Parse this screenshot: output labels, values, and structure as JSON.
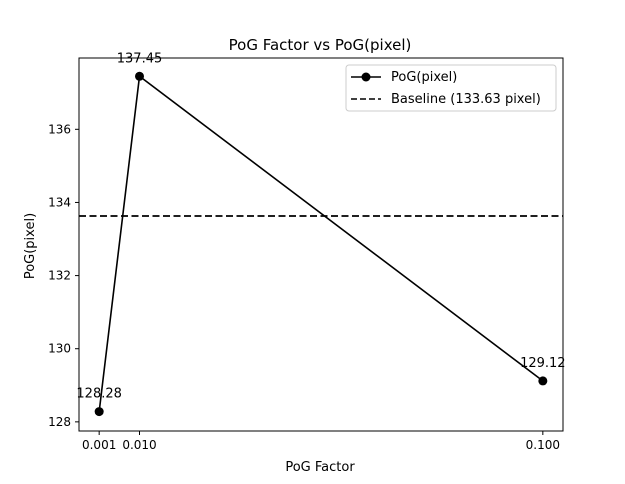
{
  "chart_data": {
    "type": "line",
    "title": "PoG Factor vs PoG(pixel)",
    "xlabel": "PoG Factor",
    "ylabel": "PoG(pixel)",
    "x": [
      0.001,
      0.01,
      0.1
    ],
    "x_tick_labels": [
      "0.001",
      "0.010",
      "0.100"
    ],
    "y_ticks": [
      128,
      130,
      132,
      134,
      136
    ],
    "xlim": [
      -0.0035,
      0.1045
    ],
    "ylim": [
      127.75,
      137.95
    ],
    "series": [
      {
        "name": "PoG(pixel)",
        "values": [
          128.28,
          137.45,
          129.12
        ],
        "color": "#000000",
        "marker": "circle"
      }
    ],
    "data_labels": [
      "128.28",
      "137.45",
      "129.12"
    ],
    "baseline": {
      "name": "Baseline (133.63 pixel)",
      "value": 133.63,
      "style": "dashed",
      "color": "#000000"
    },
    "legend_position": "top-right",
    "grid": false
  }
}
